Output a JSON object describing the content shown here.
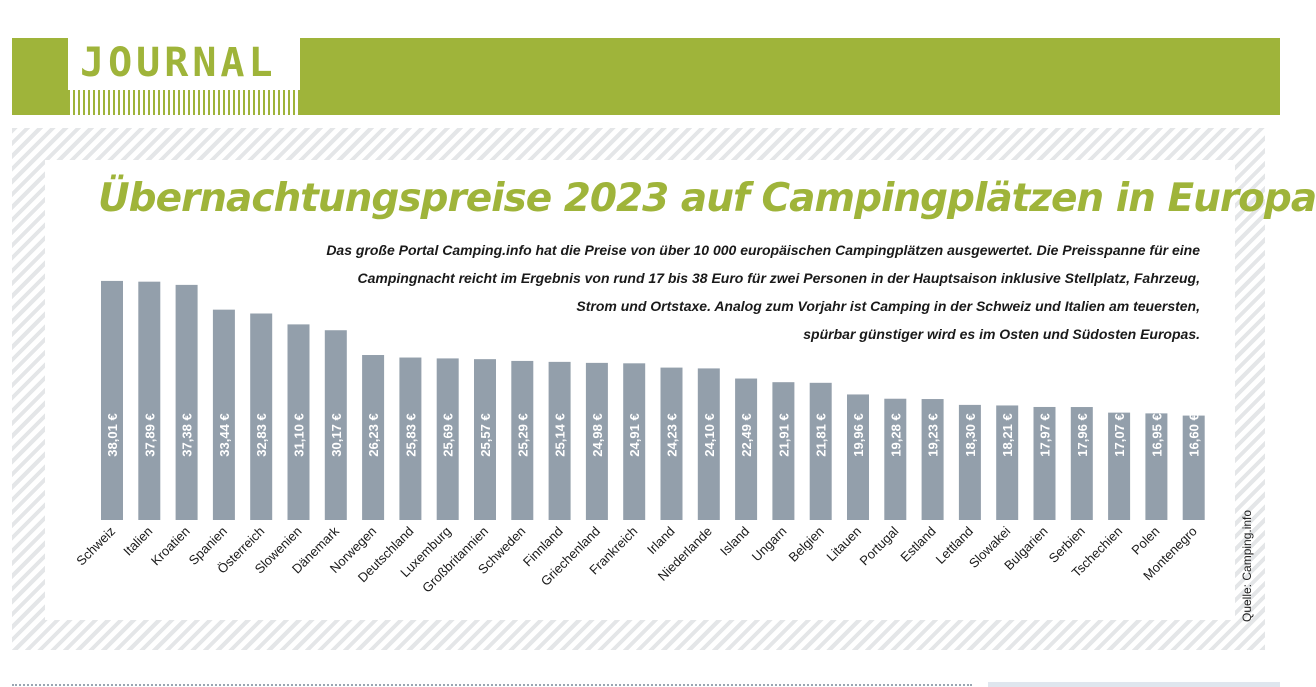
{
  "header": {
    "section": "JOURNAL",
    "accent_color": "#9fb43a"
  },
  "chart_data": {
    "type": "bar",
    "title": "Übernachtungspreise 2023 auf Campingplätzen in Europa",
    "description": [
      "Das große Portal Camping.info hat die Preise von über 10 000 europäischen Campingplätzen ausgewertet. Die Preisspanne für eine",
      "Campingnacht reicht im Ergebnis von rund 17 bis 38 Euro für zwei Personen in der Hauptsaison inklusive Stellplatz, Fahrzeug,",
      "Strom und Ortstaxe. Analog zum Vorjahr ist Camping in der Schweiz und Italien am teuersten,",
      "spürbar günstiger wird es im Osten und Südosten Europas."
    ],
    "categories": [
      "Schweiz",
      "Italien",
      "Kroatien",
      "Spanien",
      "Österreich",
      "Slowenien",
      "Dänemark",
      "Norwegen",
      "Deutschland",
      "Luxemburg",
      "Großbritannien",
      "Schweden",
      "Finnland",
      "Griechenland",
      "Frankreich",
      "Irland",
      "Niederlande",
      "Island",
      "Ungarn",
      "Belgien",
      "Litauen",
      "Portugal",
      "Estland",
      "Lettland",
      "Slowakei",
      "Bulgarien",
      "Serbien",
      "Tschechien",
      "Polen",
      "Montenegro"
    ],
    "values": [
      38.01,
      37.89,
      37.38,
      33.44,
      32.83,
      31.1,
      30.17,
      26.23,
      25.83,
      25.69,
      25.57,
      25.29,
      25.14,
      24.98,
      24.91,
      24.23,
      24.1,
      22.49,
      21.91,
      21.81,
      19.96,
      19.28,
      19.23,
      18.3,
      18.21,
      17.97,
      17.96,
      17.07,
      16.95,
      16.6
    ],
    "data_labels": [
      "38,01 €",
      "37,89 €",
      "37,38 €",
      "33,44 €",
      "32,83 €",
      "31,10 €",
      "30,17 €",
      "26,23 €",
      "25,83 €",
      "25,69 €",
      "25,57 €",
      "25,29 €",
      "25,14 €",
      "24,98 €",
      "24,91 €",
      "24,23 €",
      "24,10 €",
      "22,49 €",
      "21,91 €",
      "21,81 €",
      "19,96 €",
      "19,28 €",
      "19,23 €",
      "18,30 €",
      "18,21 €",
      "17,97 €",
      "17,96 €",
      "17,07 €",
      "16,95 €",
      "16,60 €"
    ],
    "unit": "€",
    "bar_color": "#939fab",
    "grid": false,
    "source": "Quelle: Camping.info"
  }
}
